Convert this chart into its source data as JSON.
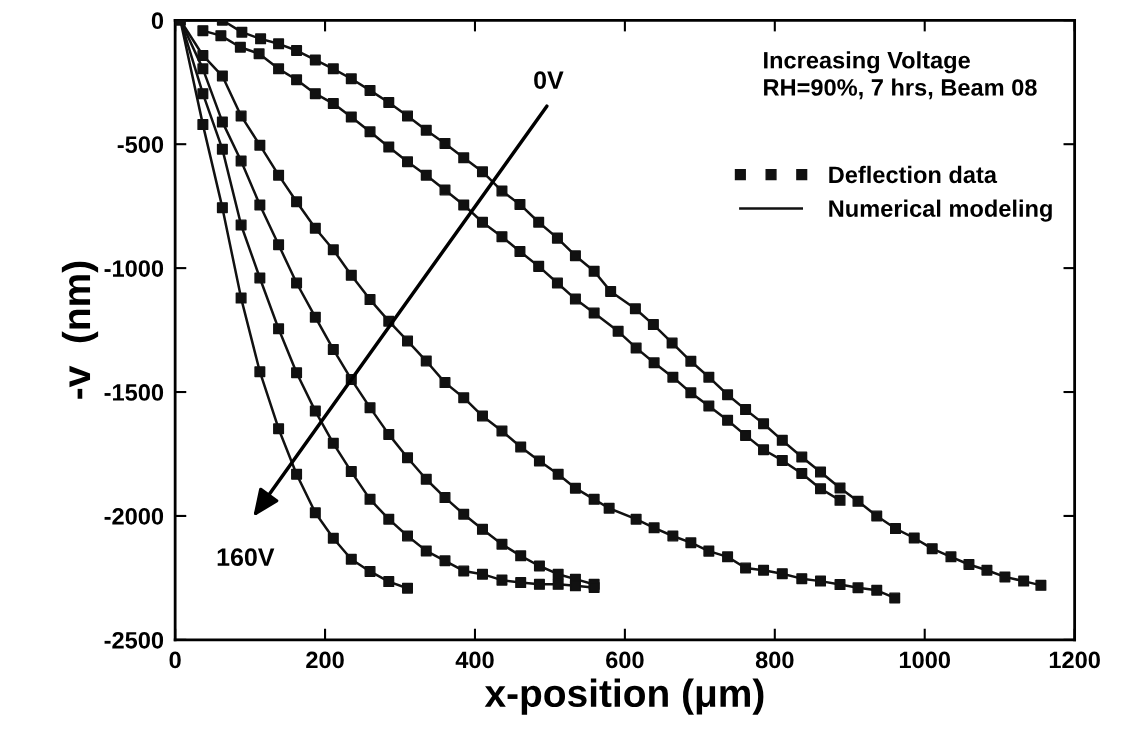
{
  "chart_data": {
    "type": "scatter",
    "xlabel": "x-position (μm)",
    "ylabel": "-v  (nm)",
    "xlim": [
      0,
      1200
    ],
    "xticks": [
      0,
      200,
      400,
      600,
      800,
      1000,
      1200
    ],
    "ylim": [
      -2500,
      0
    ],
    "yticks": [
      -2500,
      -2000,
      -1500,
      -1000,
      -500,
      0
    ],
    "grid": false,
    "legend": "right",
    "annotations": [
      "Increasing Voltage\nRH=90%, 7 hrs, Beam 08",
      "0V",
      "160V"
    ],
    "series": [
      {
        "name": "Deflection data",
        "marker": "square",
        "color": "#111111",
        "x": [
          7,
          63,
          89,
          114,
          138,
          162,
          187,
          211,
          235,
          260,
          285,
          310,
          335,
          360,
          385,
          410,
          436,
          460,
          485,
          510,
          534,
          559,
          581,
          614,
          638,
          663,
          688,
          712,
          737,
          761,
          785,
          810,
          836,
          861,
          887,
          911,
          936,
          961,
          986,
          1010,
          1035,
          1059,
          1083,
          1107,
          1132,
          1155
        ],
        "values": [
          0,
          0,
          -48,
          -75,
          -95,
          -122,
          -160,
          -196,
          -236,
          -283,
          -332,
          -386,
          -444,
          -497,
          -555,
          -611,
          -689,
          -743,
          -815,
          -879,
          -950,
          -1013,
          -1094,
          -1164,
          -1228,
          -1302,
          -1376,
          -1440,
          -1511,
          -1571,
          -1628,
          -1695,
          -1762,
          -1823,
          -1887,
          -1941,
          -2000,
          -2051,
          -2089,
          -2132,
          -2165,
          -2196,
          -2219,
          -2246,
          -2263,
          -2280
        ]
      },
      {
        "marker": "square",
        "color": "#111111",
        "x": [
          37,
          61,
          87,
          112,
          138,
          162,
          187,
          211,
          235,
          260,
          285,
          310,
          335,
          360,
          385,
          410,
          436,
          460,
          485,
          510,
          534,
          559,
          591,
          615,
          639,
          664,
          688,
          712,
          737,
          761,
          785,
          810,
          836,
          861,
          887
        ],
        "values": [
          -42,
          -62,
          -109,
          -135,
          -196,
          -240,
          -296,
          -336,
          -390,
          -450,
          -511,
          -571,
          -625,
          -685,
          -745,
          -815,
          -873,
          -933,
          -993,
          -1060,
          -1125,
          -1181,
          -1255,
          -1322,
          -1382,
          -1440,
          -1503,
          -1556,
          -1614,
          -1675,
          -1733,
          -1776,
          -1829,
          -1890,
          -1937
        ]
      },
      {
        "marker": "square",
        "color": "#111111",
        "x": [
          37,
          63,
          88,
          113,
          138,
          162,
          187,
          211,
          235,
          260,
          285,
          310,
          335,
          360,
          385,
          410,
          436,
          461,
          486,
          511,
          534,
          559,
          579,
          615,
          639,
          664,
          688,
          712,
          737,
          761,
          785,
          810,
          836,
          861,
          887,
          911,
          936,
          960
        ],
        "values": [
          -142,
          -225,
          -386,
          -504,
          -625,
          -732,
          -839,
          -926,
          -1029,
          -1127,
          -1214,
          -1294,
          -1375,
          -1462,
          -1523,
          -1597,
          -1657,
          -1722,
          -1778,
          -1832,
          -1888,
          -1933,
          -1969,
          -2013,
          -2048,
          -2081,
          -2108,
          -2142,
          -2165,
          -2210,
          -2219,
          -2233,
          -2253,
          -2263,
          -2277,
          -2290,
          -2300,
          -2331
        ]
      },
      {
        "marker": "square",
        "color": "#111111",
        "x": [
          37,
          63,
          88,
          113,
          138,
          162,
          187,
          211,
          235,
          260,
          285,
          310,
          335,
          360,
          385,
          410,
          436,
          461,
          486,
          511,
          534,
          559
        ],
        "values": [
          -196,
          -410,
          -568,
          -745,
          -906,
          -1060,
          -1198,
          -1328,
          -1449,
          -1563,
          -1671,
          -1765,
          -1852,
          -1926,
          -1993,
          -2054,
          -2114,
          -2161,
          -2202,
          -2235,
          -2255,
          -2276
        ]
      },
      {
        "marker": "square",
        "color": "#111111",
        "x": [
          37,
          63,
          88,
          113,
          138,
          162,
          187,
          211,
          235,
          260,
          285,
          310,
          335,
          360,
          385,
          410,
          436,
          461,
          486,
          511,
          534,
          559
        ],
        "values": [
          -296,
          -520,
          -826,
          -1040,
          -1245,
          -1422,
          -1577,
          -1707,
          -1821,
          -1933,
          -2013,
          -2081,
          -2141,
          -2181,
          -2222,
          -2235,
          -2259,
          -2269,
          -2276,
          -2276,
          -2282,
          -2289
        ]
      },
      {
        "marker": "square",
        "color": "#111111",
        "x": [
          37,
          63,
          88,
          113,
          138,
          162,
          187,
          211,
          235,
          260,
          285,
          310
        ],
        "values": [
          -421,
          -756,
          -1121,
          -1418,
          -1648,
          -1832,
          -1987,
          -2090,
          -2175,
          -2224,
          -2265,
          -2292
        ]
      },
      {
        "name": "Numerical modeling",
        "type": "line",
        "marker": "none",
        "color": "#111111",
        "x": [
          7,
          63,
          89,
          114,
          138,
          162,
          187,
          211,
          235,
          260,
          285,
          310,
          335,
          360,
          385,
          410,
          436,
          460,
          485,
          510,
          534,
          559,
          581,
          614,
          638,
          663,
          688,
          712,
          737,
          761,
          785,
          810,
          836,
          861,
          887,
          911,
          936,
          961,
          986,
          1010,
          1035,
          1059,
          1083,
          1107,
          1132,
          1155
        ],
        "values": [
          0,
          0,
          -48,
          -75,
          -95,
          -122,
          -160,
          -196,
          -236,
          -283,
          -332,
          -386,
          -444,
          -497,
          -555,
          -611,
          -689,
          -743,
          -815,
          -879,
          -950,
          -1013,
          -1094,
          -1164,
          -1228,
          -1302,
          -1376,
          -1440,
          -1511,
          -1571,
          -1628,
          -1695,
          -1762,
          -1823,
          -1887,
          -1941,
          -2000,
          -2051,
          -2089,
          -2132,
          -2165,
          -2196,
          -2219,
          -2246,
          -2263,
          -2280
        ]
      },
      {
        "type": "line",
        "marker": "none",
        "color": "#111111",
        "x": [
          37,
          61,
          87,
          112,
          138,
          162,
          187,
          211,
          235,
          260,
          285,
          310,
          335,
          360,
          385,
          410,
          436,
          460,
          485,
          510,
          534,
          559,
          591,
          615,
          639,
          664,
          688,
          712,
          737,
          761,
          785,
          810,
          836,
          861,
          887
        ],
        "values": [
          -42,
          -62,
          -109,
          -135,
          -196,
          -240,
          -296,
          -336,
          -390,
          -450,
          -511,
          -571,
          -625,
          -685,
          -745,
          -815,
          -873,
          -933,
          -993,
          -1060,
          -1125,
          -1181,
          -1255,
          -1322,
          -1382,
          -1440,
          -1503,
          -1556,
          -1614,
          -1675,
          -1733,
          -1776,
          -1829,
          -1890,
          -1937
        ]
      },
      {
        "type": "line",
        "marker": "none",
        "color": "#111111",
        "x": [
          7,
          37,
          63,
          88,
          113,
          138,
          162,
          187,
          211,
          235,
          260,
          285,
          310,
          335,
          360,
          385,
          410,
          436,
          461,
          486,
          511,
          534,
          559,
          579,
          615,
          639,
          664,
          688,
          712,
          737,
          761,
          785,
          810,
          836,
          861,
          887,
          911,
          936,
          960
        ],
        "values": [
          0,
          -142,
          -225,
          -386,
          -504,
          -625,
          -732,
          -839,
          -926,
          -1029,
          -1127,
          -1214,
          -1294,
          -1375,
          -1462,
          -1523,
          -1597,
          -1657,
          -1722,
          -1778,
          -1832,
          -1888,
          -1933,
          -1969,
          -2013,
          -2048,
          -2081,
          -2108,
          -2142,
          -2165,
          -2210,
          -2219,
          -2233,
          -2253,
          -2263,
          -2277,
          -2290,
          -2300,
          -2331
        ]
      },
      {
        "type": "line",
        "marker": "none",
        "color": "#111111",
        "x": [
          7,
          37,
          63,
          88,
          113,
          138,
          162,
          187,
          211,
          235,
          260,
          285,
          310,
          335,
          360,
          385,
          410,
          436,
          461,
          486,
          511,
          534,
          559
        ],
        "values": [
          0,
          -196,
          -410,
          -568,
          -745,
          -906,
          -1060,
          -1198,
          -1328,
          -1449,
          -1563,
          -1671,
          -1765,
          -1852,
          -1926,
          -1993,
          -2054,
          -2114,
          -2161,
          -2202,
          -2235,
          -2255,
          -2276
        ]
      },
      {
        "type": "line",
        "marker": "none",
        "color": "#111111",
        "x": [
          7,
          37,
          63,
          88,
          113,
          138,
          162,
          187,
          211,
          235,
          260,
          285,
          310,
          335,
          360,
          385,
          410,
          436,
          461,
          486,
          511,
          534,
          559
        ],
        "values": [
          0,
          -296,
          -520,
          -826,
          -1040,
          -1245,
          -1422,
          -1577,
          -1707,
          -1821,
          -1933,
          -2013,
          -2081,
          -2141,
          -2181,
          -2222,
          -2235,
          -2259,
          -2269,
          -2276,
          -2276,
          -2282,
          -2289
        ]
      },
      {
        "type": "line",
        "marker": "none",
        "color": "#111111",
        "x": [
          7,
          37,
          63,
          88,
          113,
          138,
          162,
          187,
          211,
          235,
          260,
          285,
          310
        ],
        "values": [
          0,
          -421,
          -756,
          -1121,
          -1418,
          -1648,
          -1832,
          -1987,
          -2090,
          -2175,
          -2224,
          -2265,
          -2292
        ]
      }
    ]
  }
}
